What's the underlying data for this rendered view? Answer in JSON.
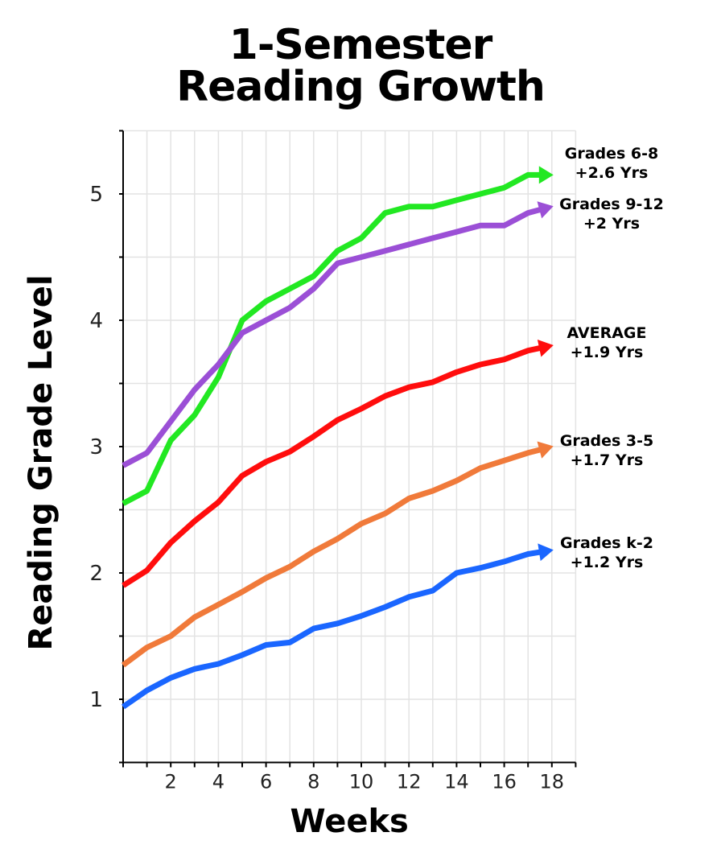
{
  "title_line1": "1-Semester",
  "title_line2": "Reading Growth",
  "chart_data": {
    "type": "line",
    "title": "1-Semester Reading Growth",
    "xlabel": "Weeks",
    "ylabel": "Reading Grade Level",
    "xlim": [
      0,
      19
    ],
    "ylim": [
      0.5,
      5.5
    ],
    "xticks": [
      2,
      4,
      6,
      8,
      10,
      12,
      14,
      16,
      18
    ],
    "yticks": [
      1,
      2,
      3,
      4,
      5
    ],
    "grid": true,
    "x": [
      0,
      1,
      2,
      3,
      4,
      5,
      6,
      7,
      8,
      9,
      10,
      11,
      12,
      13,
      14,
      15,
      16,
      17,
      18
    ],
    "series": [
      {
        "name": "Grades 6-8",
        "label_lines": [
          "Grades 6-8",
          "+2.6 Yrs"
        ],
        "color": "#22e822",
        "values": [
          2.55,
          2.65,
          3.05,
          3.25,
          3.55,
          4.0,
          4.15,
          4.25,
          4.35,
          4.55,
          4.65,
          4.85,
          4.9,
          4.9,
          4.95,
          5.0,
          5.05,
          5.15,
          5.15
        ]
      },
      {
        "name": "Grades 9-12",
        "label_lines": [
          "Grades 9-12",
          "+2 Yrs"
        ],
        "color": "#9b4fd6",
        "values": [
          2.85,
          2.95,
          3.2,
          3.45,
          3.65,
          3.9,
          4.0,
          4.1,
          4.25,
          4.45,
          4.5,
          4.55,
          4.6,
          4.65,
          4.7,
          4.75,
          4.75,
          4.85,
          4.9
        ]
      },
      {
        "name": "AVERAGE",
        "label_lines": [
          "AVERAGE",
          "+1.9 Yrs"
        ],
        "color": "#ff0d0d",
        "values": [
          1.9,
          2.02,
          2.24,
          2.41,
          2.56,
          2.77,
          2.88,
          2.96,
          3.08,
          3.21,
          3.3,
          3.4,
          3.47,
          3.51,
          3.59,
          3.65,
          3.69,
          3.76,
          3.8
        ]
      },
      {
        "name": "Grades 3-5",
        "label_lines": [
          "Grades 3-5",
          "+1.7 Yrs"
        ],
        "color": "#f07a3a",
        "values": [
          1.27,
          1.41,
          1.5,
          1.65,
          1.75,
          1.85,
          1.96,
          2.05,
          2.17,
          2.27,
          2.39,
          2.47,
          2.59,
          2.65,
          2.73,
          2.83,
          2.89,
          2.95,
          3.0
        ]
      },
      {
        "name": "Grades k-2",
        "label_lines": [
          "Grades k-2",
          "+1.2 Yrs"
        ],
        "color": "#1a66ff",
        "values": [
          0.94,
          1.07,
          1.17,
          1.24,
          1.28,
          1.35,
          1.43,
          1.45,
          1.56,
          1.6,
          1.66,
          1.73,
          1.81,
          1.86,
          2.0,
          2.04,
          2.09,
          2.15,
          2.18
        ]
      }
    ]
  }
}
